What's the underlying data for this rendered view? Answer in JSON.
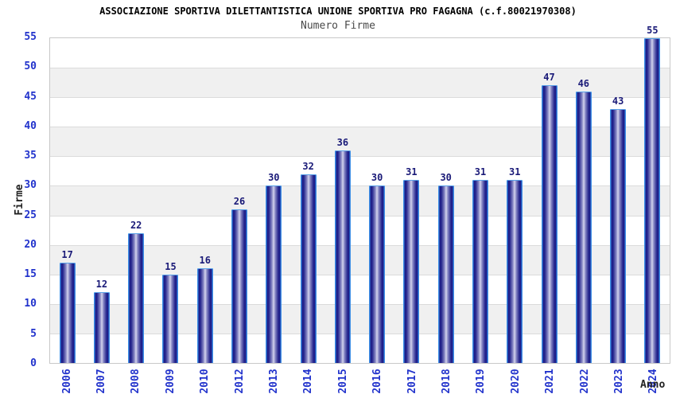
{
  "chart_data": {
    "type": "bar",
    "title": "ASSOCIAZIONE SPORTIVA DILETTANTISTICA UNIONE SPORTIVA PRO FAGAGNA (c.f.80021970308)",
    "subtitle": "Numero Firme",
    "xlabel": "Anno",
    "ylabel": "Firme",
    "categories": [
      "2006",
      "2007",
      "2008",
      "2009",
      "2010",
      "2012",
      "2013",
      "2014",
      "2015",
      "2016",
      "2017",
      "2018",
      "2019",
      "2020",
      "2021",
      "2022",
      "2023",
      "2024"
    ],
    "values": [
      17,
      12,
      22,
      15,
      16,
      26,
      30,
      32,
      36,
      30,
      31,
      30,
      31,
      31,
      47,
      46,
      43,
      55
    ],
    "ylim": [
      0,
      55
    ],
    "ytick_step": 5,
    "yticks": [
      0,
      5,
      10,
      15,
      20,
      25,
      30,
      35,
      40,
      45,
      50,
      55
    ],
    "grid": true,
    "band_fill": "alternating horizontal bands every 5 units",
    "legend": "none",
    "bar_labels_shown": true,
    "colors": {
      "bar_dark": "#1a1a86",
      "bar_mid": "#8a8ac6",
      "bar_highlight": "#d4d4ee",
      "bar_edge": "#3c8ee6",
      "tick_label": "#2233cc",
      "value_label": "#1a1a78",
      "band_gray": "#f0f0f0",
      "band_white": "#ffffff",
      "gridline": "#dbdbdb",
      "plot_border": "#c8c8c8",
      "title": "#000000",
      "subtitle": "#4a4a4a",
      "axis_title": "#222222",
      "background": "#ffffff"
    }
  }
}
